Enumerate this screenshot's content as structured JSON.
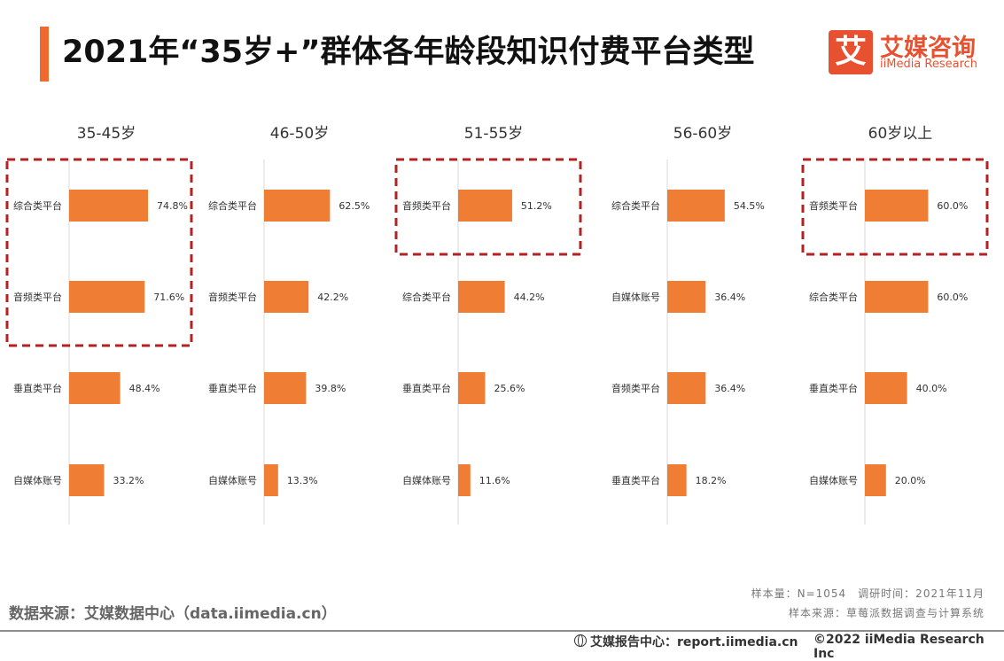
{
  "title": "2021年“35岁+”群体各年龄段知识付费平台类型",
  "logo": {
    "cn": "艾媒咨询",
    "en": "iiMedia Research",
    "mark": "艾"
  },
  "source_left": "数据来源：艾媒数据中心（data.iimedia.cn）",
  "note_line1": "样本量：N=1054　调研时间：2021年11月",
  "note_line2": "样本来源：草莓派数据调查与计算系统",
  "footer_report": "艾媒报告中心：report.iimedia.cn",
  "footer_copy": "©2022  iiMedia Research  Inc",
  "colors": {
    "bar": "#ef7d34",
    "highlight_box": "#b22222",
    "accent": "#f06a2f"
  },
  "chart_data": [
    {
      "type": "bar",
      "orientation": "horizontal",
      "title": "35-45岁",
      "categories": [
        "综合类平台",
        "音频类平台",
        "垂直类平台",
        "自媒体账号"
      ],
      "values": [
        74.8,
        71.6,
        48.4,
        33.2
      ],
      "labels": [
        "74.8%",
        "71.6%",
        "48.4%",
        "33.2%"
      ],
      "highlight": [
        0,
        1
      ]
    },
    {
      "type": "bar",
      "orientation": "horizontal",
      "title": "46-50岁",
      "categories": [
        "综合类平台",
        "音频类平台",
        "垂直类平台",
        "自媒体账号"
      ],
      "values": [
        62.5,
        42.2,
        39.8,
        13.3
      ],
      "labels": [
        "62.5%",
        "42.2%",
        "39.8%",
        "13.3%"
      ],
      "highlight": []
    },
    {
      "type": "bar",
      "orientation": "horizontal",
      "title": "51-55岁",
      "categories": [
        "音频类平台",
        "综合类平台",
        "垂直类平台",
        "自媒体账号"
      ],
      "values": [
        51.2,
        44.2,
        25.6,
        11.6
      ],
      "labels": [
        "51.2%",
        "44.2%",
        "25.6%",
        "11.6%"
      ],
      "highlight": [
        0
      ]
    },
    {
      "type": "bar",
      "orientation": "horizontal",
      "title": "56-60岁",
      "categories": [
        "综合类平台",
        "自媒体账号",
        "音频类平台",
        "垂直类平台"
      ],
      "values": [
        54.5,
        36.4,
        36.4,
        18.2
      ],
      "labels": [
        "54.5%",
        "36.4%",
        "36.4%",
        "18.2%"
      ],
      "highlight": []
    },
    {
      "type": "bar",
      "orientation": "horizontal",
      "title": "60岁以上",
      "categories": [
        "音频类平台",
        "综合类平台",
        "垂直类平台",
        "自媒体账号"
      ],
      "values": [
        60.0,
        60.0,
        40.0,
        20.0
      ],
      "labels": [
        "60.0%",
        "60.0%",
        "40.0%",
        "20.0%"
      ],
      "highlight": [
        0
      ]
    }
  ]
}
